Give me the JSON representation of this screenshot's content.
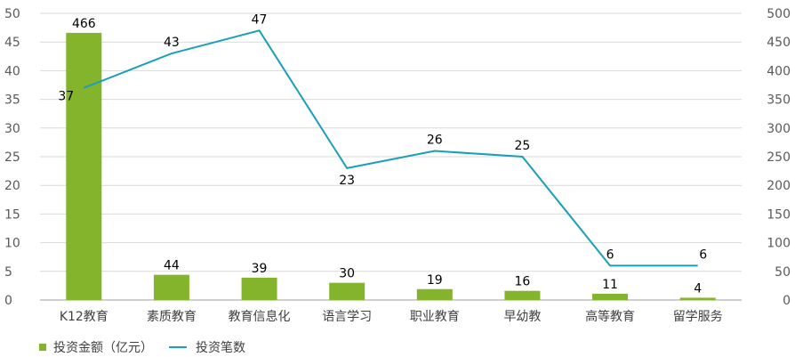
{
  "chart_data": {
    "type": "bar+line",
    "title": "",
    "categories": [
      "K12教育",
      "素质教育",
      "教育信息化",
      "语言学习",
      "职业教育",
      "早幼教",
      "高等教育",
      "留学服务"
    ],
    "series": [
      {
        "name": "投资金额（亿元）",
        "type": "bar",
        "axis": "right",
        "color": "#84b42c",
        "values": [
          466,
          44,
          39,
          30,
          19,
          16,
          11,
          4
        ]
      },
      {
        "name": "投资笔数",
        "type": "line",
        "axis": "left",
        "color": "#1a9fba",
        "values": [
          37,
          43,
          47,
          23,
          26,
          25,
          6,
          6
        ]
      }
    ],
    "left_axis": {
      "ylim": [
        0,
        50
      ],
      "ticks": [
        0,
        5,
        10,
        15,
        20,
        25,
        30,
        35,
        40,
        45,
        50
      ]
    },
    "right_axis": {
      "ylim": [
        0,
        500
      ],
      "ticks": [
        0,
        50,
        100,
        150,
        200,
        250,
        300,
        350,
        400,
        450,
        500
      ]
    },
    "grid": true,
    "legend_position": "bottom-left"
  },
  "legend": {
    "bar_label": "投资金额（亿元）",
    "line_label": "投资笔数"
  }
}
